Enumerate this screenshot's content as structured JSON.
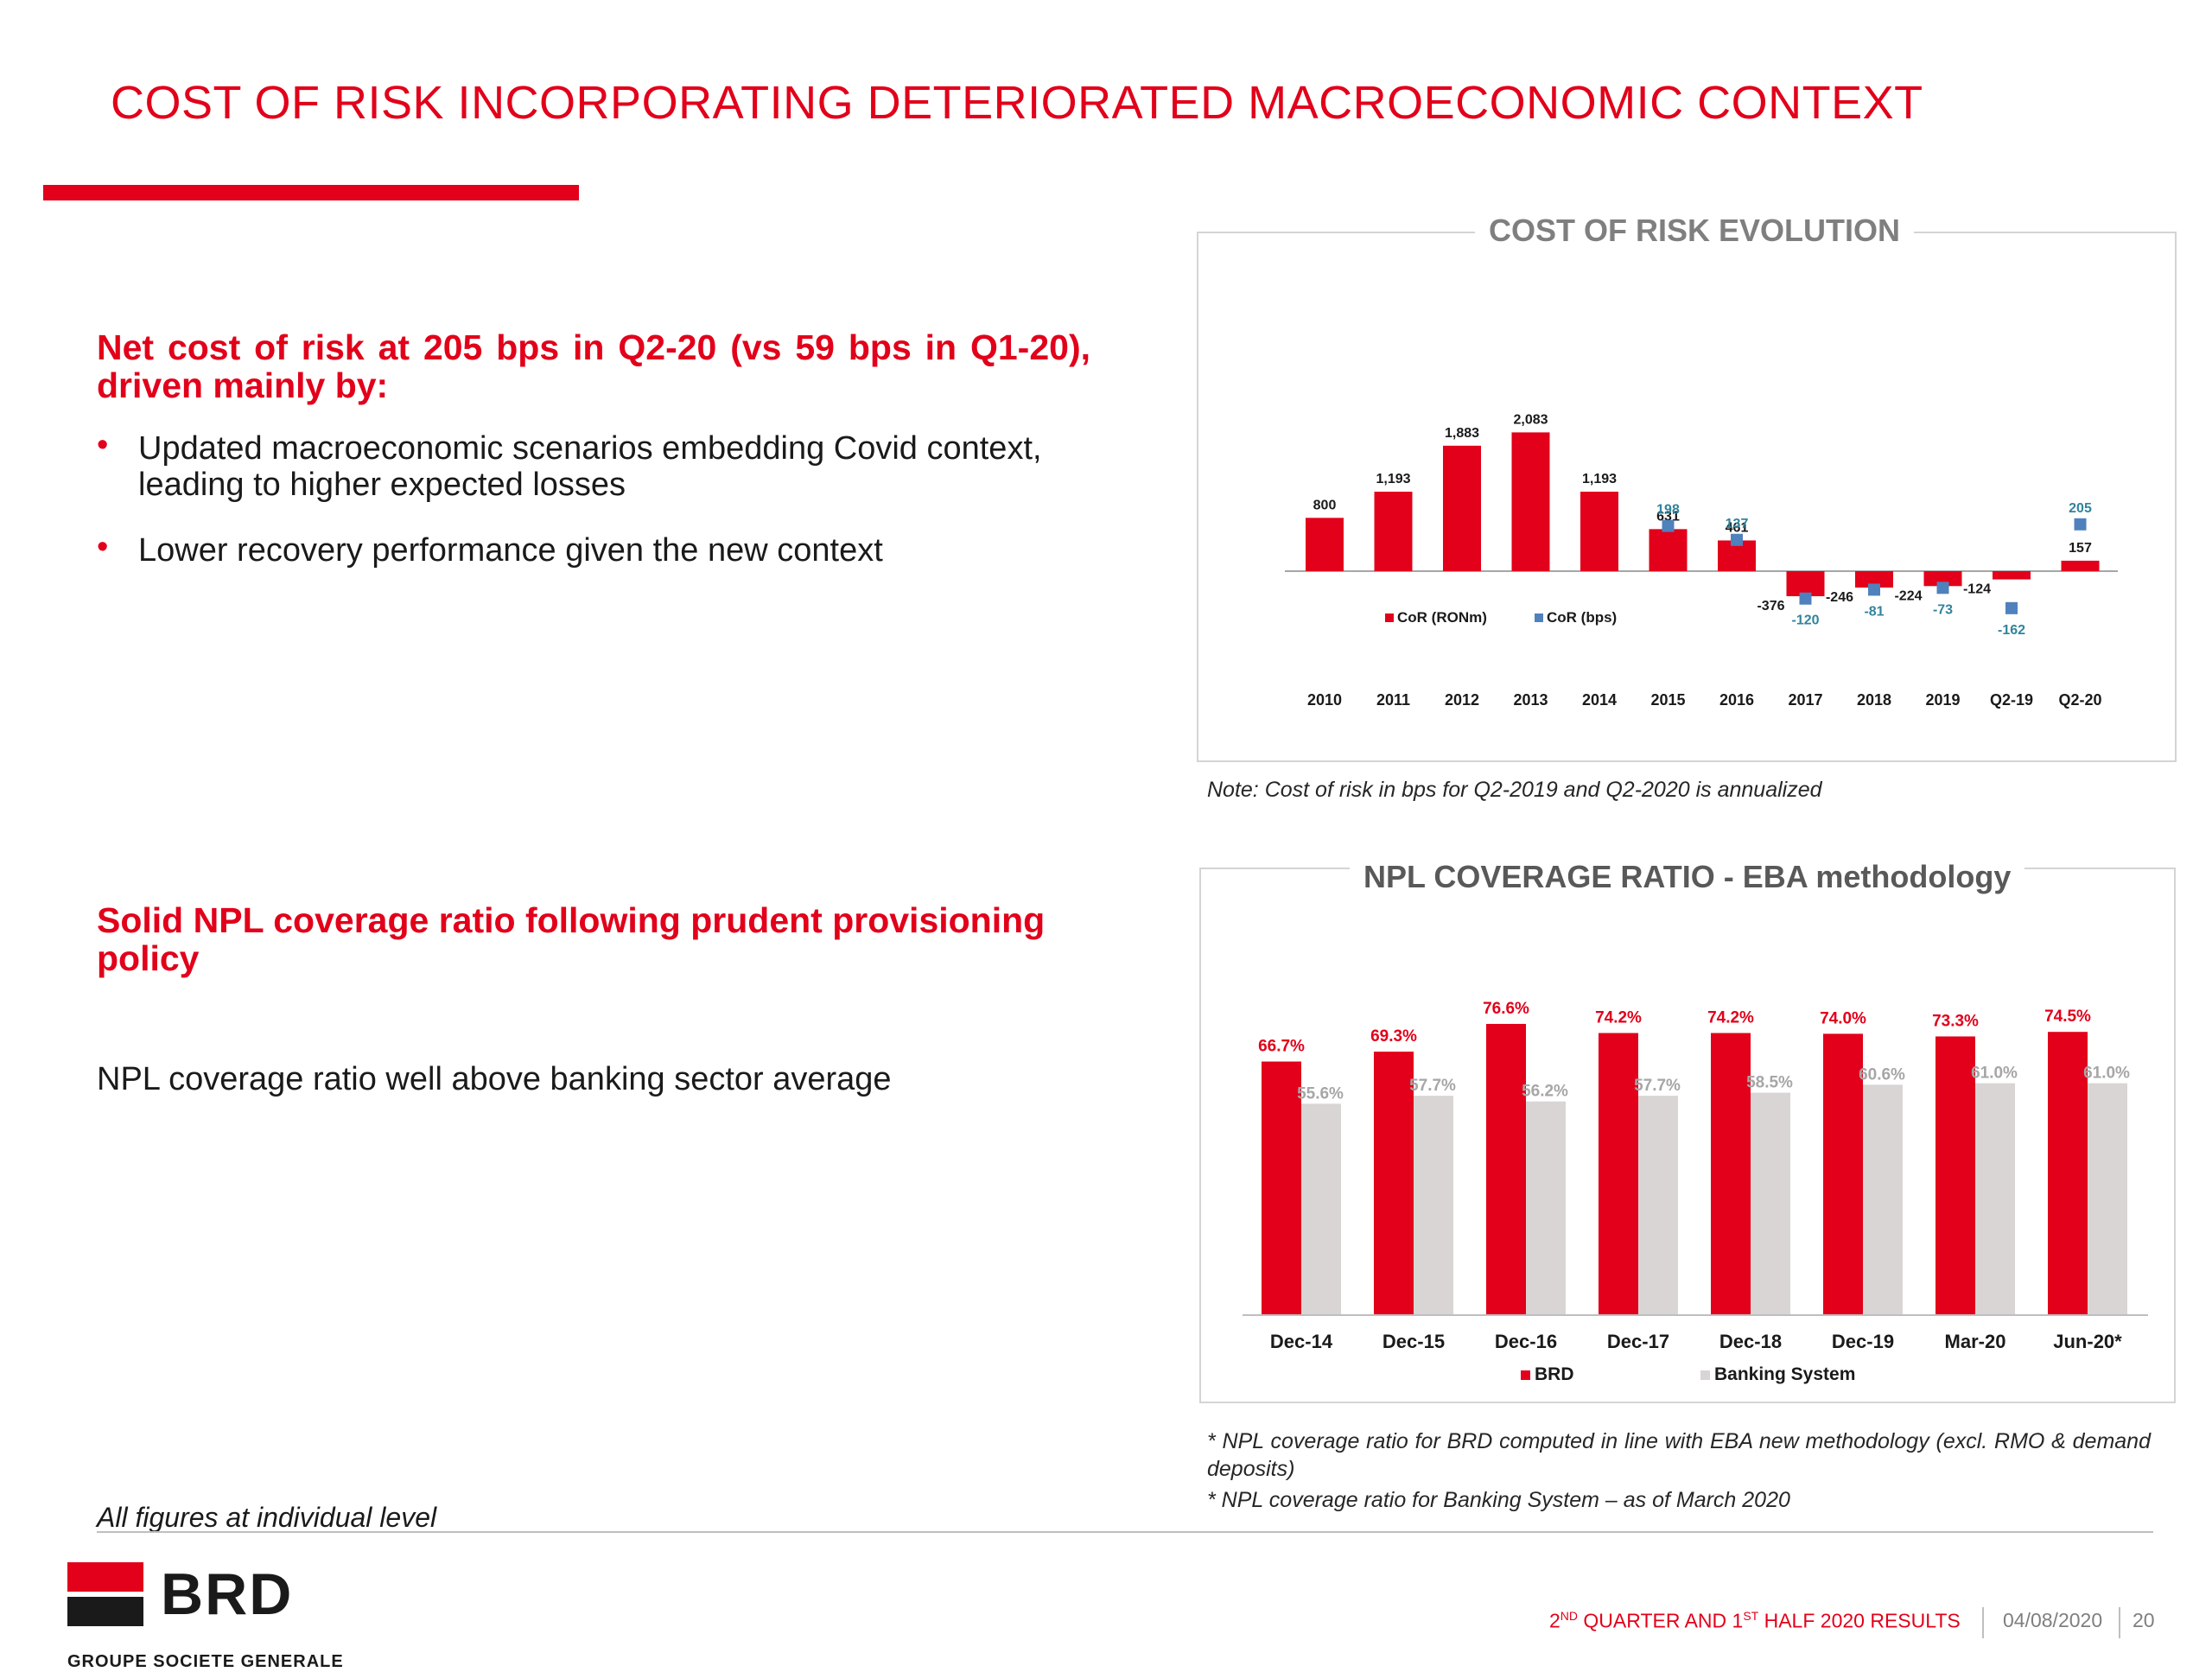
{
  "title": "COST OF RISK INCORPORATING DETERIORATED MACROECONOMIC CONTEXT",
  "section1": {
    "heading": "Net cost of risk at 205 bps in Q2-20 (vs 59 bps in Q1-20), driven mainly by:",
    "bullets": [
      "Updated macroeconomic scenarios embedding Covid context, leading to higher expected losses",
      "Lower recovery performance given the new context"
    ]
  },
  "section2": {
    "heading": "Solid NPL coverage ratio following prudent provisioning policy",
    "text": "NPL coverage ratio well above banking sector average"
  },
  "figures_note": "All figures at individual level",
  "chart1_title": "COST OF RISK EVOLUTION",
  "chart1_note": "Note: Cost of risk in bps for Q2-2019 and Q2-2020 is annualized",
  "chart2_title": "NPL COVERAGE RATIO - EBA methodology",
  "chart2_footnote1": "*  NPL coverage ratio for BRD computed in line with EBA new methodology (excl. RMO & demand deposits)",
  "chart2_footnote2": "*  NPL coverage ratio for Banking System – as of March 2020",
  "chart_data": [
    {
      "type": "bar",
      "title": "COST OF RISK EVOLUTION",
      "categories": [
        "2010",
        "2011",
        "2012",
        "2013",
        "2014",
        "2015",
        "2016",
        "2017",
        "2018",
        "2019",
        "Q2-19",
        "Q2-20"
      ],
      "series": [
        {
          "name": "CoR (RONm)",
          "values": [
            800,
            1193,
            1883,
            2083,
            1193,
            631,
            461,
            -376,
            -246,
            -224,
            -124,
            157
          ],
          "color": "#e2001a",
          "kind": "bar"
        },
        {
          "name": "CoR (bps)",
          "values": [
            null,
            null,
            null,
            null,
            null,
            198,
            137,
            -120,
            -81,
            -73,
            -162,
            205
          ],
          "color": "#4f81bd",
          "kind": "marker"
        }
      ],
      "labels": [
        "800",
        "1,193",
        "1,883",
        "2,083",
        "1,193",
        "631",
        "461",
        "-376",
        "-246",
        "-224",
        "-124",
        "157"
      ],
      "bps_labels": [
        "",
        "",
        "",
        "",
        "",
        "198",
        "137",
        "-120",
        "-81",
        "-73",
        "-162",
        "205"
      ],
      "legend_position": "inside-bottom-left",
      "grid": false
    },
    {
      "type": "bar",
      "title": "NPL COVERAGE RATIO - EBA methodology",
      "categories": [
        "Dec-14",
        "Dec-15",
        "Dec-16",
        "Dec-17",
        "Dec-18",
        "Dec-19",
        "Mar-20",
        "Jun-20*"
      ],
      "series": [
        {
          "name": "BRD",
          "values": [
            66.7,
            69.3,
            76.6,
            74.2,
            74.2,
            74.0,
            73.3,
            74.5
          ],
          "color": "#e2001a"
        },
        {
          "name": "Banking System",
          "values": [
            55.6,
            57.7,
            56.2,
            57.7,
            58.5,
            60.6,
            61.0,
            61.0
          ],
          "color": "#d9d5d5"
        }
      ],
      "labels_brd": [
        "66.7%",
        "69.3%",
        "76.6%",
        "74.2%",
        "74.2%",
        "74.0%",
        "73.3%",
        "74.5%"
      ],
      "labels_bank": [
        "55.6%",
        "57.7%",
        "56.2%",
        "57.7%",
        "58.5%",
        "60.6%",
        "61.0%",
        "61.0%"
      ],
      "ylim": [
        0,
        80
      ],
      "legend_position": "bottom",
      "grid": false
    }
  ],
  "footer": {
    "logo_text": "BRD",
    "logo_sub": "GROUPE SOCIETE GENERALE",
    "report_prefix1": "2",
    "report_sup1": "ND",
    "report_mid": " QUARTER AND 1",
    "report_sup2": "ST",
    "report_suffix": " HALF 2020 RESULTS",
    "date": "04/08/2020",
    "page": "20"
  }
}
